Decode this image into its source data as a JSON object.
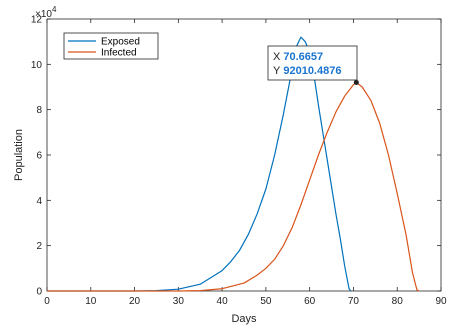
{
  "chart_data": {
    "type": "line",
    "xlabel": "Days",
    "ylabel": "Population",
    "y_multiplier_label": "×10",
    "y_multiplier_exponent": "4",
    "xlim": [
      0,
      90
    ],
    "ylim": [
      0,
      12
    ],
    "x_ticks": [
      0,
      10,
      20,
      30,
      40,
      50,
      60,
      70,
      80,
      90
    ],
    "y_ticks": [
      0,
      2,
      4,
      6,
      8,
      10,
      12
    ],
    "grid": false,
    "legend_position": "top-left",
    "series": [
      {
        "name": "Exposed",
        "color": "#0072BD",
        "points": [
          [
            0,
            0
          ],
          [
            20,
            0
          ],
          [
            25,
            0.02
          ],
          [
            30,
            0.08
          ],
          [
            35,
            0.3
          ],
          [
            40,
            0.9
          ],
          [
            42,
            1.3
          ],
          [
            44,
            1.8
          ],
          [
            46,
            2.5
          ],
          [
            48,
            3.4
          ],
          [
            50,
            4.5
          ],
          [
            52,
            6.0
          ],
          [
            54,
            7.8
          ],
          [
            55,
            8.8
          ],
          [
            56,
            9.8
          ],
          [
            57,
            10.8
          ],
          [
            58,
            11.2
          ],
          [
            59,
            11.0
          ],
          [
            60,
            10.5
          ],
          [
            61,
            9.5
          ],
          [
            62,
            8.2
          ],
          [
            63,
            7.0
          ],
          [
            64,
            5.8
          ],
          [
            65,
            4.6
          ],
          [
            66,
            3.4
          ],
          [
            67,
            2.3
          ],
          [
            68,
            1.1
          ],
          [
            69,
            0.1
          ],
          [
            69.4,
            0
          ]
        ]
      },
      {
        "name": "Infected",
        "color": "#D95319",
        "points": [
          [
            0,
            0
          ],
          [
            30,
            0
          ],
          [
            35,
            0.02
          ],
          [
            40,
            0.1
          ],
          [
            45,
            0.35
          ],
          [
            48,
            0.7
          ],
          [
            50,
            1.0
          ],
          [
            52,
            1.4
          ],
          [
            54,
            2.0
          ],
          [
            56,
            2.8
          ],
          [
            58,
            3.8
          ],
          [
            60,
            4.9
          ],
          [
            62,
            6.0
          ],
          [
            64,
            7.0
          ],
          [
            66,
            7.9
          ],
          [
            68,
            8.6
          ],
          [
            70,
            9.1
          ],
          [
            70.6657,
            9.20104876
          ],
          [
            72,
            9.0
          ],
          [
            74,
            8.4
          ],
          [
            76,
            7.4
          ],
          [
            78,
            6.0
          ],
          [
            80,
            4.3
          ],
          [
            82,
            2.5
          ],
          [
            83.5,
            0.8
          ],
          [
            84.5,
            0.05
          ],
          [
            85,
            0
          ]
        ]
      }
    ],
    "datatip": {
      "x_label": "X",
      "x_value": "70.6657",
      "y_label": "Y",
      "y_value": "92010.4876",
      "x": 70.6657,
      "y": 9.20104876
    }
  }
}
